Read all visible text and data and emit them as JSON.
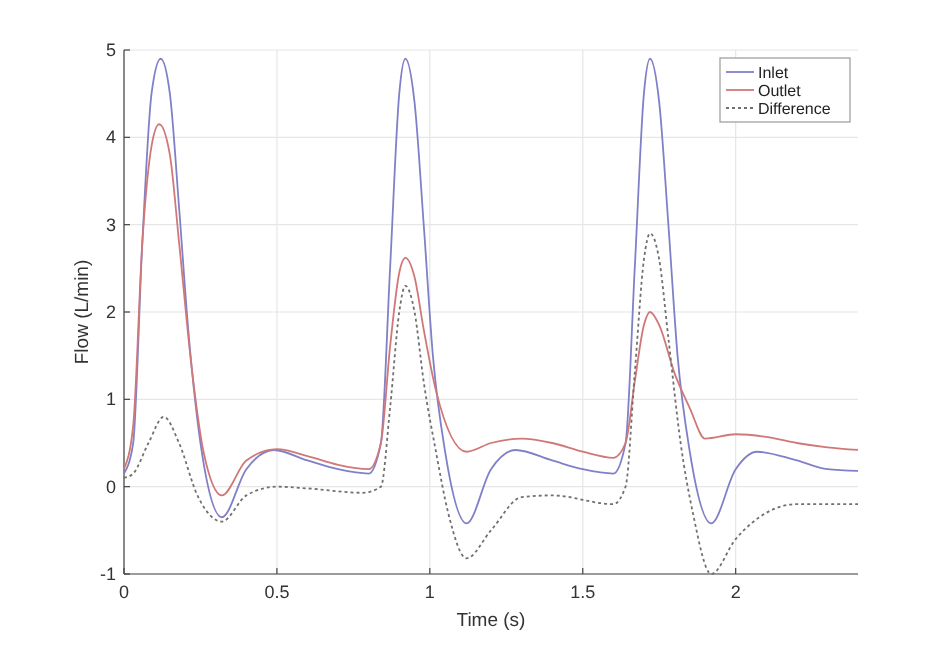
{
  "chart_data": {
    "type": "line",
    "xlabel": "Time (s)",
    "ylabel": "Flow (L/min)",
    "xlim": [
      0,
      2.4
    ],
    "xticks": [
      0,
      0.5,
      1,
      1.5,
      2
    ],
    "ylim": [
      -1,
      5
    ],
    "yticks": [
      -1,
      0,
      1,
      2,
      3,
      4,
      5
    ],
    "grid": true,
    "legend": "top right",
    "marker": "none",
    "series": [
      {
        "name": "Inlet",
        "color": "#8080c8",
        "line_style": "solid",
        "x": [
          0,
          0.03,
          0.06,
          0.09,
          0.12,
          0.15,
          0.18,
          0.21,
          0.25,
          0.32,
          0.4,
          0.49,
          0.6,
          0.7,
          0.8,
          0.84,
          0.87,
          0.9,
          0.92,
          0.95,
          0.98,
          1.01,
          1.05,
          1.12,
          1.2,
          1.28,
          1.4,
          1.5,
          1.6,
          1.64,
          1.67,
          1.7,
          1.72,
          1.75,
          1.78,
          1.81,
          1.85,
          1.92,
          2.0,
          2.07,
          2.2,
          2.3,
          2.4
        ],
        "values": [
          0.15,
          0.5,
          2.8,
          4.5,
          4.9,
          4.5,
          3.2,
          1.8,
          0.5,
          -0.35,
          0.2,
          0.42,
          0.3,
          0.2,
          0.15,
          0.5,
          2.5,
          4.5,
          4.9,
          4.4,
          3.0,
          1.5,
          0.4,
          -0.42,
          0.2,
          0.42,
          0.3,
          0.2,
          0.15,
          0.5,
          2.5,
          4.5,
          4.9,
          4.4,
          3.0,
          1.5,
          0.4,
          -0.42,
          0.2,
          0.4,
          0.3,
          0.2,
          0.18
        ]
      },
      {
        "name": "Outlet",
        "color": "#d07878",
        "line_style": "solid",
        "x": [
          0,
          0.03,
          0.06,
          0.09,
          0.115,
          0.15,
          0.18,
          0.22,
          0.26,
          0.32,
          0.4,
          0.5,
          0.6,
          0.7,
          0.8,
          0.84,
          0.87,
          0.9,
          0.92,
          0.95,
          0.98,
          1.02,
          1.12,
          1.2,
          1.3,
          1.4,
          1.5,
          1.6,
          1.64,
          1.67,
          1.7,
          1.72,
          1.75,
          1.8,
          1.85,
          1.9,
          2.0,
          2.1,
          2.2,
          2.3,
          2.4
        ],
        "values": [
          0.2,
          0.7,
          2.8,
          3.9,
          4.15,
          3.8,
          2.8,
          1.4,
          0.4,
          -0.1,
          0.3,
          0.43,
          0.35,
          0.25,
          0.2,
          0.5,
          1.6,
          2.45,
          2.62,
          2.4,
          1.8,
          1.1,
          0.4,
          0.5,
          0.55,
          0.5,
          0.4,
          0.33,
          0.5,
          1.2,
          1.85,
          2.0,
          1.85,
          1.3,
          0.9,
          0.55,
          0.6,
          0.57,
          0.5,
          0.45,
          0.42
        ]
      },
      {
        "name": "Difference",
        "color": "#707070",
        "line_style": "dotted",
        "x": [
          0,
          0.03,
          0.08,
          0.13,
          0.18,
          0.24,
          0.32,
          0.4,
          0.5,
          0.6,
          0.78,
          0.84,
          0.87,
          0.9,
          0.92,
          0.95,
          0.98,
          1.02,
          1.06,
          1.12,
          1.2,
          1.3,
          1.4,
          1.6,
          1.64,
          1.67,
          1.7,
          1.72,
          1.75,
          1.78,
          1.82,
          1.86,
          1.92,
          2.0,
          2.1,
          2.2,
          2.3,
          2.4
        ],
        "values": [
          0.1,
          0.15,
          0.5,
          0.8,
          0.5,
          -0.1,
          -0.4,
          -0.1,
          0.0,
          -0.02,
          -0.07,
          0.0,
          0.9,
          2.0,
          2.3,
          2.0,
          1.2,
          0.4,
          -0.3,
          -0.82,
          -0.5,
          -0.12,
          -0.1,
          -0.2,
          0.0,
          1.3,
          2.6,
          2.9,
          2.6,
          1.7,
          0.5,
          -0.3,
          -1.0,
          -0.6,
          -0.3,
          -0.2,
          -0.2,
          -0.2
        ]
      }
    ]
  }
}
